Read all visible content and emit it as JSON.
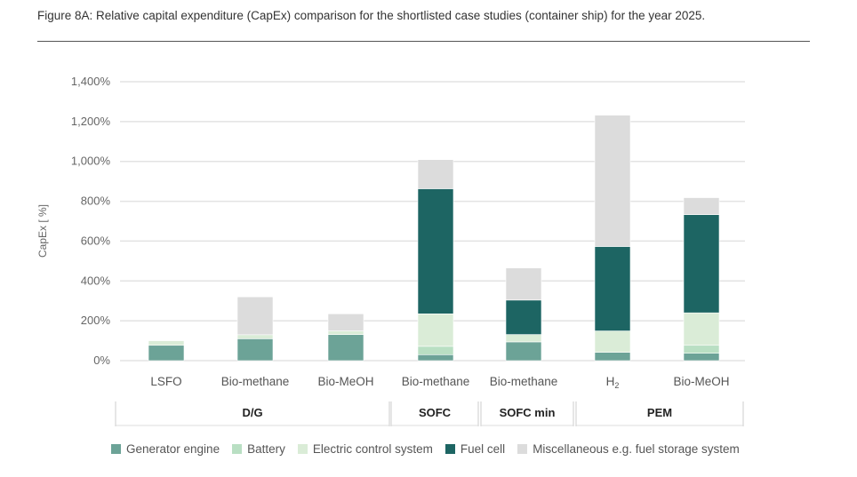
{
  "chart_data": {
    "type": "bar",
    "stacked": true,
    "title": "Figure 8A: Relative capital expenditure (CapEx) comparison for the shortlisted case studies (container ship) for the year 2025.",
    "ylabel": "CapEx [ %]",
    "ylim": [
      0,
      1400
    ],
    "yticks": [
      "0%",
      "200%",
      "400%",
      "600%",
      "800%",
      "1,000%",
      "1,200%",
      "1,400%"
    ],
    "grid": true,
    "legend_position": "bottom",
    "categories": [
      "LSFO",
      "Bio-methane",
      "Bio-MeOH",
      "Bio-methane",
      "Bio-methane",
      "H2",
      "Bio-MeOH"
    ],
    "groups": [
      {
        "label": "D/G",
        "span": 3
      },
      {
        "label": "SOFC",
        "span": 1
      },
      {
        "label": "SOFC min",
        "span": 1
      },
      {
        "label": "PEM",
        "span": 2
      }
    ],
    "series": [
      {
        "name": "Generator engine",
        "color": "#6ca397",
        "values": [
          77,
          110,
          131,
          30,
          94,
          42,
          37
        ]
      },
      {
        "name": "Battery",
        "color": "#b9dfc3",
        "values": [
          0,
          0,
          0,
          42,
          0,
          0,
          40
        ]
      },
      {
        "name": "Electric control system",
        "color": "#daecd7",
        "values": [
          23,
          20,
          18,
          163,
          37,
          107,
          163
        ]
      },
      {
        "name": "Fuel cell",
        "color": "#1d6563",
        "values": [
          0,
          0,
          0,
          628,
          173,
          424,
          493
        ]
      },
      {
        "name": "Miscellaneous e.g. fuel storage system",
        "color": "#dcdcdc",
        "values": [
          0,
          190,
          86,
          146,
          161,
          659,
          85
        ]
      }
    ]
  }
}
